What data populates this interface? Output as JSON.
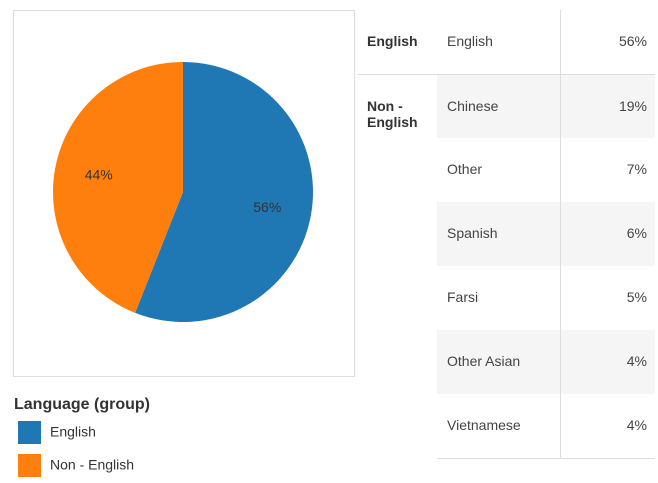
{
  "chart_data": {
    "type": "pie",
    "legend_title": "Language (group)",
    "categories": [
      "English",
      "Non - English"
    ],
    "values": [
      56,
      44
    ],
    "value_labels": [
      "56%",
      "44%"
    ],
    "colors": [
      "#1f77b4",
      "#ff7f0e"
    ]
  },
  "table": {
    "rows": [
      {
        "group": "English",
        "items": [
          {
            "language": "English",
            "value": "56%"
          }
        ]
      },
      {
        "group": "Non - English",
        "items": [
          {
            "language": "Chinese",
            "value": "19%"
          },
          {
            "language": "Other",
            "value": "7%"
          },
          {
            "language": "Spanish",
            "value": "6%"
          },
          {
            "language": "Farsi",
            "value": "5%"
          },
          {
            "language": "Other Asian",
            "value": "4%"
          },
          {
            "language": "Vietnamese",
            "value": "4%"
          }
        ]
      }
    ]
  }
}
